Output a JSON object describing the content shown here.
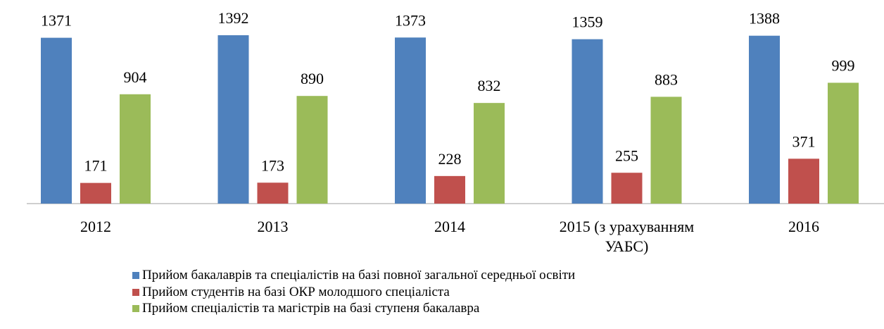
{
  "chart_data": {
    "type": "bar",
    "categories": [
      "2012",
      "2013",
      "2014",
      "2015 (з урахуванням УАБС)",
      "2016"
    ],
    "series": [
      {
        "name": "Прийом бакалаврів та спеціалістів на базі повної загальної середньої освіти",
        "color": "#4f81bd",
        "values": [
          1371,
          1392,
          1373,
          1359,
          1388
        ]
      },
      {
        "name": "Прийом студентів на базі ОКР молодшого спеціаліста",
        "color": "#c0504d",
        "values": [
          171,
          173,
          228,
          255,
          371
        ]
      },
      {
        "name": "Прийом спеціалістів та магістрів на базі ступеня бакалавра",
        "color": "#9bbb59",
        "values": [
          904,
          890,
          832,
          883,
          999
        ]
      }
    ],
    "legend": "bottom"
  }
}
